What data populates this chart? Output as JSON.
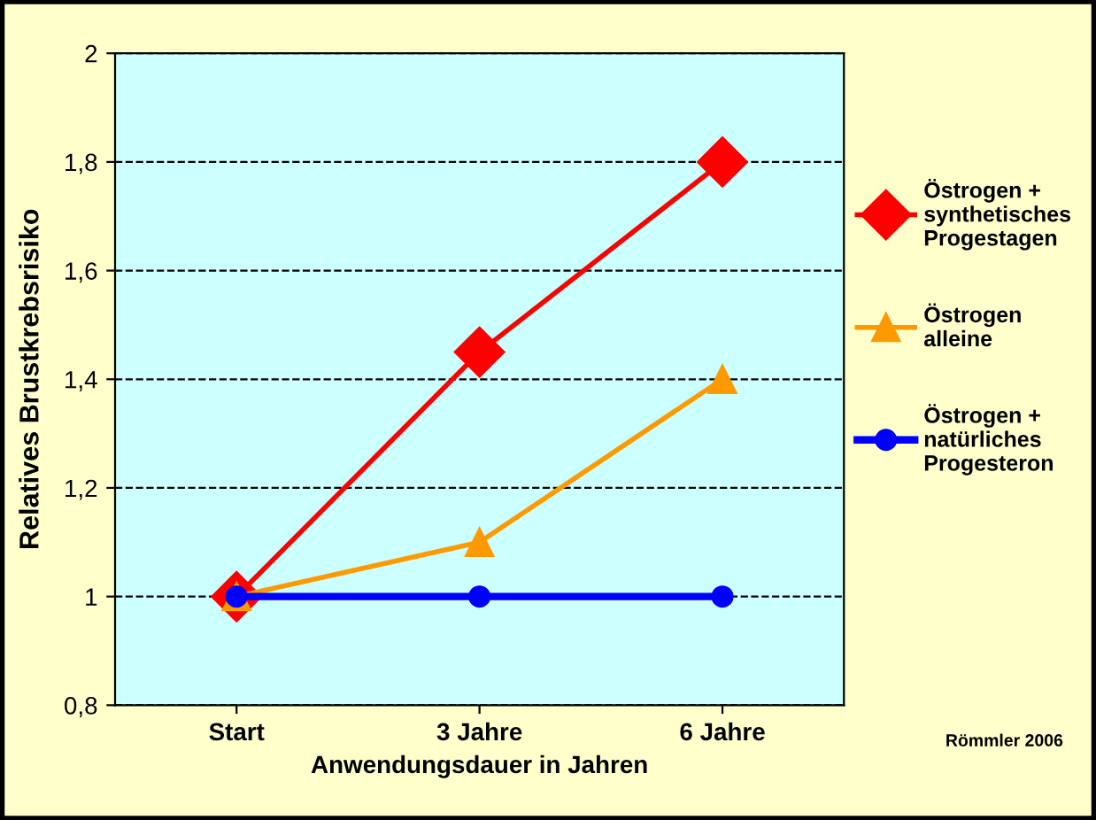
{
  "chart_data": {
    "type": "line",
    "ylabel": "Relatives Brustkrebsrisiko",
    "xlabel": "Anwendungsdauer in Jahren",
    "categories": [
      "Start",
      "3 Jahre",
      "6 Jahre"
    ],
    "series": [
      {
        "name": "Östrogen + synthetisches Progestagen",
        "color": "#ff0000",
        "marker": "diamond",
        "values": [
          1,
          1.45,
          1.8
        ]
      },
      {
        "name": "Östrogen alleine",
        "color": "#ff9900",
        "marker": "triangle",
        "values": [
          1,
          1.1,
          1.4
        ]
      },
      {
        "name": "Östrogen + natürliches Progesteron",
        "color": "#0000ff",
        "marker": "circle",
        "values": [
          1,
          1,
          1
        ]
      }
    ],
    "ylim": [
      0.8,
      2
    ],
    "yticks": [
      {
        "value": 0.8,
        "label": "0,8"
      },
      {
        "value": 1,
        "label": "1"
      },
      {
        "value": 1.2,
        "label": "1,2"
      },
      {
        "value": 1.4,
        "label": "1,4"
      },
      {
        "value": 1.6,
        "label": "1,6"
      },
      {
        "value": 1.8,
        "label": "1,8"
      },
      {
        "value": 2,
        "label": "2"
      }
    ],
    "grid": "y",
    "legend": "right",
    "annotations": [
      "Römmler 2006"
    ]
  }
}
